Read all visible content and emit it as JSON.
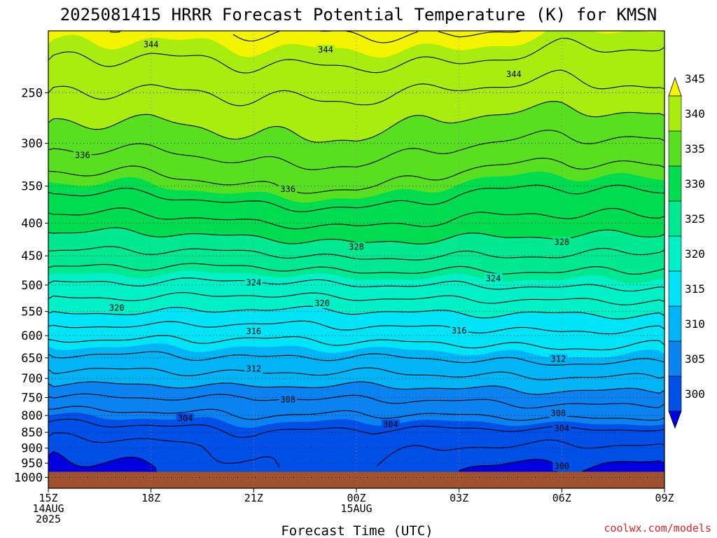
{
  "title": "2025081415 HRRR Forecast Potential Temperature (K) for KMSN",
  "credit": "coolwx.com/models",
  "chart_data": {
    "type": "heatmap",
    "title": "2025081415 HRRR Forecast Potential Temperature (K) for KMSN",
    "xlabel": "Forecast Time (UTC)",
    "ylabel": "",
    "x_hours": [
      0,
      3,
      6,
      9,
      12,
      15,
      18
    ],
    "x_ticks": [
      {
        "hour": 0,
        "lines": [
          "15Z",
          "14AUG",
          "2025"
        ]
      },
      {
        "hour": 3,
        "lines": [
          "18Z"
        ]
      },
      {
        "hour": 6,
        "lines": [
          "21Z"
        ]
      },
      {
        "hour": 9,
        "lines": [
          "00Z",
          "15AUG"
        ]
      },
      {
        "hour": 12,
        "lines": [
          "03Z"
        ]
      },
      {
        "hour": 15,
        "lines": [
          "06Z"
        ]
      },
      {
        "hour": 18,
        "lines": [
          "09Z"
        ]
      }
    ],
    "xlim": [
      0,
      18
    ],
    "y_scale": "log-pressure",
    "ylim_hpa": [
      1040,
      200
    ],
    "y_ticks": [
      250,
      300,
      350,
      400,
      450,
      500,
      550,
      600,
      650,
      700,
      750,
      800,
      850,
      900,
      950,
      1000
    ],
    "surface_pressure_hpa": 980,
    "contour_interval_k": 2,
    "fill_interval_k": 5,
    "contour_levels": [
      300,
      302,
      304,
      306,
      308,
      310,
      312,
      314,
      316,
      318,
      320,
      322,
      324,
      326,
      328,
      330,
      332,
      334,
      336,
      338,
      340,
      342,
      344,
      346
    ],
    "contour_labels": [
      {
        "value": 344,
        "hour": 3,
        "p": 210
      },
      {
        "value": 344,
        "hour": 8.1,
        "p": 214
      },
      {
        "value": 344,
        "hour": 13.6,
        "p": 234
      },
      {
        "value": 336,
        "hour": 1.0,
        "p": 313
      },
      {
        "value": 336,
        "hour": 7.0,
        "p": 354
      },
      {
        "value": 328,
        "hour": 9.0,
        "p": 436
      },
      {
        "value": 328,
        "hour": 15.0,
        "p": 428
      },
      {
        "value": 324,
        "hour": 6.0,
        "p": 496
      },
      {
        "value": 324,
        "hour": 13.0,
        "p": 488
      },
      {
        "value": 320,
        "hour": 2.0,
        "p": 543
      },
      {
        "value": 320,
        "hour": 8.0,
        "p": 534
      },
      {
        "value": 316,
        "hour": 6.0,
        "p": 591
      },
      {
        "value": 316,
        "hour": 12.0,
        "p": 589
      },
      {
        "value": 312,
        "hour": 6.0,
        "p": 676
      },
      {
        "value": 312,
        "hour": 14.9,
        "p": 653
      },
      {
        "value": 308,
        "hour": 7.0,
        "p": 756
      },
      {
        "value": 308,
        "hour": 14.9,
        "p": 794
      },
      {
        "value": 304,
        "hour": 4.0,
        "p": 808
      },
      {
        "value": 304,
        "hour": 10.0,
        "p": 826
      },
      {
        "value": 304,
        "hour": 15.0,
        "p": 838
      },
      {
        "value": 300,
        "hour": 15.0,
        "p": 960
      }
    ],
    "colorbar": {
      "labels": [
        300,
        305,
        310,
        315,
        320,
        325,
        330,
        335,
        340,
        345
      ],
      "bands": [
        {
          "lo": 295,
          "hi": 300,
          "color": "#0000e0"
        },
        {
          "lo": 300,
          "hi": 305,
          "color": "#0050e8"
        },
        {
          "lo": 305,
          "hi": 310,
          "color": "#0a82f0"
        },
        {
          "lo": 310,
          "hi": 315,
          "color": "#00b4f5"
        },
        {
          "lo": 315,
          "hi": 320,
          "color": "#00e4f8"
        },
        {
          "lo": 320,
          "hi": 325,
          "color": "#00f0c8"
        },
        {
          "lo": 325,
          "hi": 330,
          "color": "#00e890"
        },
        {
          "lo": 330,
          "hi": 335,
          "color": "#00dc50"
        },
        {
          "lo": 335,
          "hi": 340,
          "color": "#58e020"
        },
        {
          "lo": 340,
          "hi": 345,
          "color": "#a8ec10"
        },
        {
          "lo": 345,
          "hi": 350,
          "color": "#f4f400"
        }
      ]
    },
    "ground_color": "#a0522d",
    "theta_profile": {
      "p_hpa": [
        980,
        950,
        900,
        850,
        800,
        750,
        700,
        650,
        600,
        550,
        500,
        450,
        400,
        350,
        300,
        250,
        200
      ],
      "theta_k_at_hours": {
        "0": [
          299.0,
          299.5,
          300.5,
          302.5,
          305.0,
          307.8,
          310.8,
          313.5,
          316.5,
          320.3,
          323.8,
          327.5,
          331.0,
          334.6,
          338.6,
          342.0,
          345.8
        ],
        "3": [
          299.6,
          300.2,
          301.0,
          303.0,
          305.4,
          308.0,
          311.0,
          313.6,
          316.5,
          320.1,
          323.6,
          327.3,
          331.0,
          334.8,
          338.5,
          341.8,
          345.5
        ],
        "6": [
          301.8,
          302.2,
          302.8,
          304.0,
          306.0,
          308.0,
          311.4,
          314.0,
          316.3,
          319.6,
          323.3,
          327.5,
          332.0,
          336.1,
          339.6,
          342.3,
          346.1
        ],
        "9": [
          302.6,
          302.8,
          303.0,
          303.6,
          305.8,
          308.2,
          311.0,
          313.8,
          316.8,
          319.9,
          324.0,
          328.5,
          332.5,
          336.5,
          339.7,
          342.4,
          346.2
        ],
        "12": [
          299.8,
          300.2,
          301.8,
          303.4,
          306.0,
          308.5,
          311.6,
          314.2,
          317.0,
          320.3,
          324.0,
          328.0,
          331.6,
          334.6,
          338.2,
          341.6,
          346.5
        ],
        "15": [
          299.6,
          300.0,
          301.6,
          303.4,
          306.6,
          309.2,
          311.8,
          314.8,
          317.6,
          320.3,
          324.4,
          328.0,
          331.2,
          334.0,
          337.4,
          341.1,
          345.0
        ],
        "18": [
          299.4,
          300.0,
          301.6,
          303.5,
          306.4,
          308.9,
          311.8,
          314.6,
          317.0,
          320.6,
          324.3,
          327.3,
          331.4,
          334.6,
          337.8,
          341.8,
          344.8
        ]
      }
    }
  }
}
